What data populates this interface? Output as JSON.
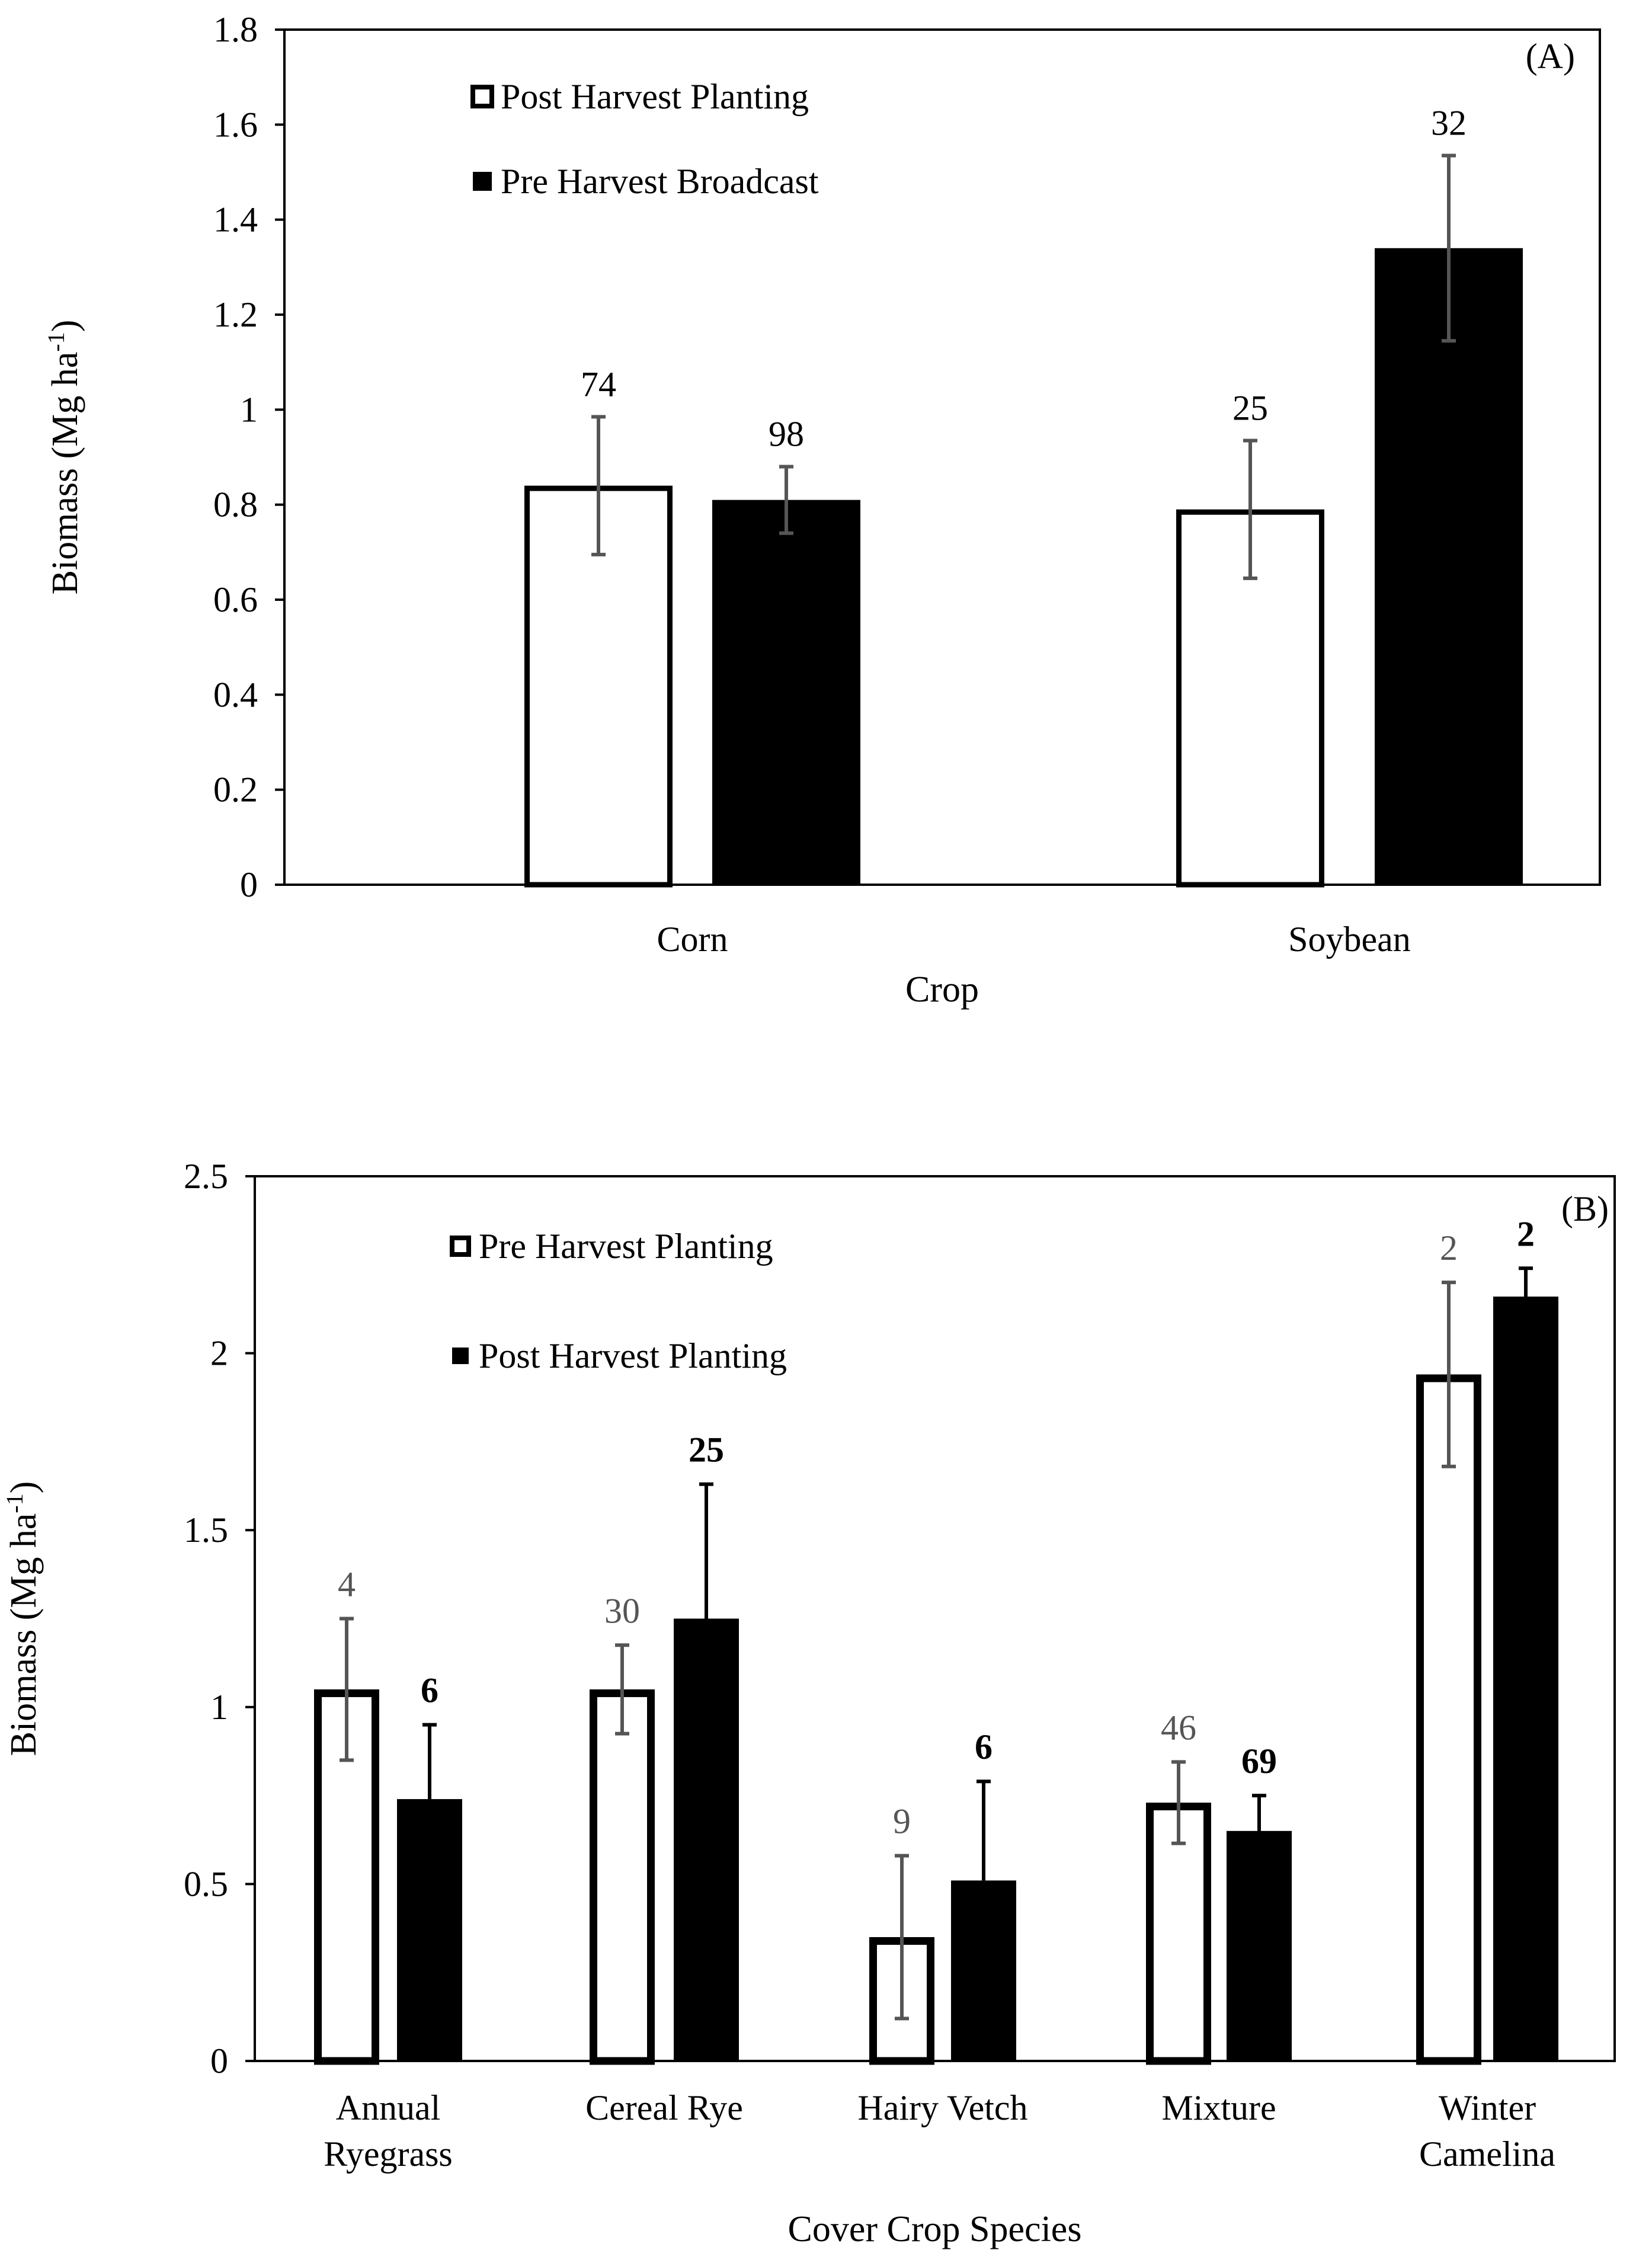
{
  "chart_data": [
    {
      "type": "bar",
      "panel_label": "(A)",
      "categories": [
        "Corn",
        "Soybean"
      ],
      "series": [
        {
          "name": "Post Harvest Planting",
          "fill": "#ffffff",
          "values": [
            0.84,
            0.79
          ],
          "errors": [
            0.145,
            0.145
          ],
          "n": [
            "74",
            "25"
          ]
        },
        {
          "name": "Pre Harvest Broadcast",
          "fill": "#000000",
          "values": [
            0.81,
            1.34
          ],
          "errors": [
            0.07,
            0.195
          ],
          "n": [
            "98",
            "32"
          ]
        }
      ],
      "xlabel": "Crop",
      "ylabel": "Biomass (Mg ha",
      "ylabel_sup": "-1",
      "ylabel_end": ")",
      "ylim": [
        0,
        1.8
      ],
      "yticks": [
        "0",
        "0.2",
        "0.4",
        "0.6",
        "0.8",
        "1",
        "1.2",
        "1.4",
        "1.6",
        "1.8"
      ],
      "legend_position": "top-left"
    },
    {
      "type": "bar",
      "panel_label": "(B)",
      "categories": [
        [
          "Annual",
          "Ryegrass"
        ],
        [
          "Cereal Rye"
        ],
        [
          "Hairy Vetch"
        ],
        [
          "Mixture"
        ],
        [
          "Winter",
          "Camelina"
        ]
      ],
      "series": [
        {
          "name": "Pre Harvest Planting",
          "fill": "#ffffff",
          "values": [
            1.05,
            1.05,
            0.35,
            0.73,
            1.94
          ],
          "errors": [
            0.2,
            0.125,
            0.23,
            0.115,
            0.26
          ],
          "errors_lower": [
            0.2,
            0.125,
            0.23,
            0.115,
            0.26
          ],
          "n": [
            "4",
            "30",
            "9",
            "46",
            "2"
          ]
        },
        {
          "name": "Post Harvest Planting",
          "fill": "#000000",
          "values": [
            0.74,
            1.25,
            0.51,
            0.65,
            2.16
          ],
          "errors": [
            0.21,
            0.38,
            0.28,
            0.1,
            0.08
          ],
          "errors_lower": [
            0,
            0,
            0,
            0,
            0
          ],
          "n": [
            "6",
            "25",
            "6",
            "69",
            "2"
          ]
        }
      ],
      "xlabel": "Cover Crop Species",
      "ylabel": "Biomass (Mg ha",
      "ylabel_sup": "-1",
      "ylabel_end": ")",
      "ylim": [
        0,
        2.5
      ],
      "yticks": [
        "0",
        "0.5",
        "1",
        "1.5",
        "2",
        "2.5"
      ],
      "legend_position": "top-left"
    }
  ]
}
